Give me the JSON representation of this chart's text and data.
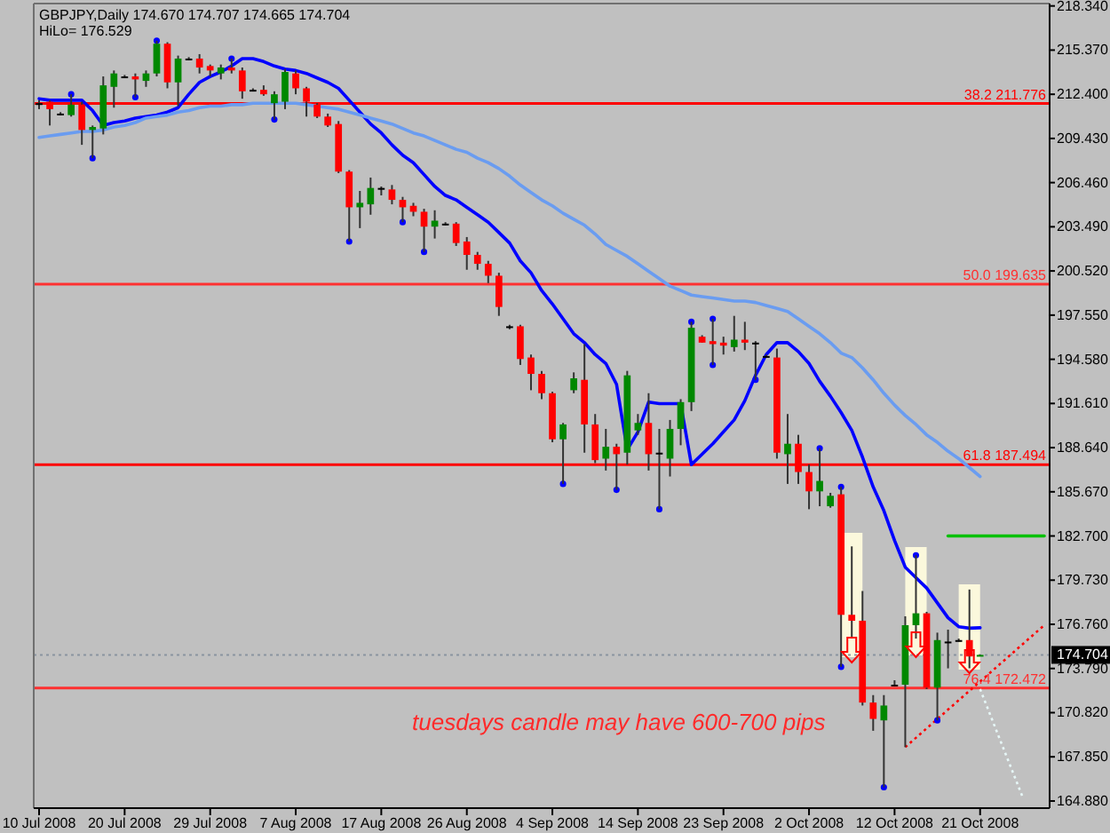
{
  "chart_data": {
    "type": "candlestick",
    "title": "GBPJPY,Daily 174.670 174.707 174.665 174.704",
    "subtitle": "HiLo= 176.529",
    "categories": [
      "10 Jul 2008",
      null,
      null,
      null,
      null,
      null,
      null,
      null,
      "20 Jul 2008",
      null,
      null,
      null,
      null,
      null,
      null,
      null,
      "29 Jul 2008",
      null,
      null,
      null,
      null,
      null,
      null,
      null,
      "7 Aug 2008",
      null,
      null,
      null,
      null,
      null,
      null,
      null,
      "17 Aug 2008",
      null,
      null,
      null,
      null,
      null,
      null,
      null,
      "26 Aug 2008",
      null,
      null,
      null,
      null,
      null,
      null,
      null,
      "4 Sep 2008",
      null,
      null,
      null,
      null,
      null,
      null,
      null,
      "14 Sep 2008",
      null,
      null,
      null,
      null,
      null,
      null,
      null,
      "23 Sep 2008",
      null,
      null,
      null,
      null,
      null,
      null,
      null,
      "2 Oct 2008",
      null,
      null,
      null,
      null,
      null,
      null,
      null,
      "12 Oct 2008",
      null,
      null,
      null,
      null,
      null,
      null,
      null,
      "21 Oct 2008",
      null,
      null,
      null,
      null,
      null,
      null
    ],
    "ohlc": [
      [
        211.8,
        212.0,
        211.4,
        211.8
      ],
      [
        211.9,
        212.0,
        210.3,
        211.4
      ],
      [
        211.1,
        211.2,
        211.0,
        211.1
      ],
      [
        211.0,
        212.4,
        210.9,
        211.7
      ],
      [
        211.7,
        211.9,
        209.0,
        210.0
      ],
      [
        210.0,
        210.3,
        208.1,
        210.2
      ],
      [
        210.1,
        213.6,
        209.7,
        213.0
      ],
      [
        212.9,
        214.0,
        211.5,
        213.8
      ],
      [
        213.6,
        213.7,
        213.5,
        213.6
      ],
      [
        213.6,
        213.8,
        212.2,
        213.4
      ],
      [
        213.3,
        214.0,
        212.9,
        213.8
      ],
      [
        213.8,
        216.0,
        213.6,
        215.8
      ],
      [
        215.8,
        215.9,
        212.8,
        213.2
      ],
      [
        213.2,
        215.0,
        211.6,
        214.8
      ],
      [
        214.8,
        214.9,
        214.7,
        214.8
      ],
      [
        214.8,
        215.1,
        213.8,
        214.2
      ],
      [
        214.3,
        214.4,
        213.6,
        214.0
      ],
      [
        213.8,
        214.4,
        213.4,
        214.2
      ],
      [
        214.2,
        214.8,
        213.8,
        214.0
      ],
      [
        214.0,
        214.2,
        212.1,
        212.6
      ],
      [
        212.7,
        212.8,
        212.6,
        212.7
      ],
      [
        212.7,
        213.0,
        212.3,
        212.4
      ],
      [
        211.8,
        212.6,
        210.7,
        212.4
      ],
      [
        211.9,
        214.1,
        211.4,
        213.9
      ],
      [
        213.8,
        214.0,
        212.4,
        212.8
      ],
      [
        212.8,
        212.9,
        210.9,
        211.9
      ],
      [
        211.7,
        211.8,
        210.8,
        210.9
      ],
      [
        210.9,
        211.1,
        210.2,
        210.3
      ],
      [
        210.4,
        210.6,
        207.1,
        207.2
      ],
      [
        207.2,
        207.3,
        202.5,
        204.8
      ],
      [
        204.8,
        205.9,
        203.4,
        205.1
      ],
      [
        205.0,
        206.8,
        204.3,
        206.1
      ],
      [
        206.1,
        206.2,
        205.6,
        206.1
      ],
      [
        206.0,
        206.3,
        205.0,
        205.3
      ],
      [
        205.3,
        205.5,
        203.8,
        204.8
      ],
      [
        204.9,
        205.1,
        204.2,
        204.5
      ],
      [
        204.5,
        204.7,
        201.8,
        203.5
      ],
      [
        203.5,
        204.6,
        202.7,
        203.9
      ],
      [
        203.7,
        203.8,
        203.6,
        203.7
      ],
      [
        203.7,
        203.8,
        202.2,
        202.4
      ],
      [
        202.5,
        202.8,
        200.6,
        201.6
      ],
      [
        201.6,
        201.8,
        200.6,
        201.0
      ],
      [
        201.0,
        201.2,
        199.7,
        200.2
      ],
      [
        200.2,
        200.4,
        197.5,
        198.1
      ],
      [
        196.8,
        196.9,
        196.6,
        196.8
      ],
      [
        196.8,
        196.9,
        194.2,
        194.6
      ],
      [
        194.7,
        194.9,
        192.5,
        193.6
      ],
      [
        193.6,
        193.8,
        191.9,
        192.3
      ],
      [
        192.3,
        192.4,
        189.0,
        189.2
      ],
      [
        189.2,
        190.3,
        186.2,
        190.2
      ],
      [
        192.5,
        193.7,
        192.3,
        193.3
      ],
      [
        193.2,
        195.6,
        188.3,
        190.2
      ],
      [
        190.2,
        190.9,
        187.6,
        187.8
      ],
      [
        187.9,
        189.9,
        187.1,
        188.7
      ],
      [
        188.7,
        188.9,
        185.8,
        188.2
      ],
      [
        188.3,
        193.8,
        187.5,
        193.5
      ],
      [
        189.8,
        190.9,
        189.5,
        190.3
      ],
      [
        190.3,
        192.3,
        187.1,
        188.2
      ],
      [
        188.3,
        189.9,
        184.5,
        188.3
      ],
      [
        187.9,
        190.5,
        186.7,
        189.9
      ],
      [
        189.9,
        191.9,
        188.8,
        191.7
      ],
      [
        191.7,
        197.1,
        191.1,
        196.7
      ],
      [
        196.1,
        196.2,
        195.7,
        195.7
      ],
      [
        195.8,
        197.3,
        194.2,
        195.6
      ],
      [
        195.7,
        196.1,
        194.9,
        195.5
      ],
      [
        195.4,
        197.5,
        195.1,
        195.9
      ],
      [
        195.9,
        197.1,
        195.2,
        195.7
      ],
      [
        195.7,
        195.8,
        193.2,
        195.7
      ],
      [
        194.8,
        194.9,
        194.7,
        194.8
      ],
      [
        194.7,
        195.3,
        187.9,
        188.3
      ],
      [
        188.2,
        190.9,
        186.2,
        188.9
      ],
      [
        188.9,
        189.5,
        186.2,
        187.0
      ],
      [
        187.0,
        187.5,
        184.5,
        185.7
      ],
      [
        185.7,
        188.6,
        184.7,
        186.4
      ],
      [
        184.7,
        185.6,
        184.6,
        185.4
      ],
      [
        185.5,
        186.0,
        173.9,
        177.4
      ],
      [
        177.4,
        182.0,
        175.9,
        177.0
      ],
      [
        177.0,
        179.0,
        171.3,
        171.5
      ],
      [
        171.5,
        172.0,
        169.6,
        170.4
      ],
      [
        170.3,
        172.0,
        165.8,
        171.3
      ],
      [
        172.7,
        173.0,
        172.6,
        172.7
      ],
      [
        172.7,
        177.3,
        168.5,
        176.7
      ],
      [
        176.7,
        181.4,
        175.8,
        177.5
      ],
      [
        177.5,
        177.6,
        172.4,
        172.5
      ],
      [
        172.5,
        176.2,
        170.3,
        175.7
      ],
      [
        175.6,
        176.4,
        173.8,
        175.6
      ],
      [
        175.7,
        175.8,
        175.6,
        175.7
      ],
      [
        175.7,
        179.1,
        173.8,
        174.6
      ],
      [
        174.67,
        174.707,
        174.665,
        174.704
      ],
      null,
      null,
      null,
      null,
      null,
      null
    ],
    "colors": [
      "#000000",
      "#ff0000",
      "#000000",
      "#008800",
      "#ff0000",
      "#008800",
      "#008800",
      "#008800",
      "#000000",
      "#ff0000",
      "#008800",
      "#008800",
      "#ff0000",
      "#008800",
      "#000000",
      "#ff0000",
      "#ff0000",
      "#008800",
      "#ff0000",
      "#ff0000",
      "#000000",
      "#ff0000",
      "#008800",
      "#008800",
      "#ff0000",
      "#ff0000",
      "#ff0000",
      "#ff0000",
      "#ff0000",
      "#ff0000",
      "#008800",
      "#008800",
      "#000000",
      "#ff0000",
      "#ff0000",
      "#ff0000",
      "#ff0000",
      "#008800",
      "#000000",
      "#ff0000",
      "#ff0000",
      "#ff0000",
      "#ff0000",
      "#ff0000",
      "#000000",
      "#ff0000",
      "#ff0000",
      "#ff0000",
      "#ff0000",
      "#008800",
      "#008800",
      "#ff0000",
      "#ff0000",
      "#008800",
      "#ff0000",
      "#008800",
      "#008800",
      "#ff0000",
      "#000000",
      "#008800",
      "#008800",
      "#008800",
      "#ff0000",
      "#ff0000",
      "#ff0000",
      "#008800",
      "#ff0000",
      "#000000",
      "#000000",
      "#ff0000",
      "#008800",
      "#ff0000",
      "#ff0000",
      "#008800",
      "#008800",
      "#ff0000",
      "#ff0000",
      "#ff0000",
      "#ff0000",
      "#008800",
      "#000000",
      "#008800",
      "#008800",
      "#ff0000",
      "#008800",
      "#000000",
      "#000000",
      "#ff0000",
      "#008800",
      null,
      null,
      null,
      null,
      null,
      null
    ],
    "series": [
      {
        "type": "line",
        "color": "#0000ff",
        "values": [
          212.1,
          212.0,
          212.0,
          212.0,
          212.0,
          211.3,
          210.3,
          210.5,
          210.6,
          210.8,
          210.9,
          211.0,
          211.2,
          211.5,
          212.4,
          213.2,
          213.6,
          213.9,
          214.3,
          214.8,
          214.8,
          214.6,
          214.3,
          214.1,
          214.0,
          213.8,
          213.5,
          213.2,
          212.8,
          212.0,
          211.2,
          210.4,
          209.8,
          209.0,
          208.3,
          207.8,
          207.0,
          206.2,
          205.6,
          205.3,
          204.8,
          204.3,
          203.8,
          203.1,
          202.4,
          201.2,
          200.4,
          199.2,
          198.3,
          197.3,
          196.3,
          195.7,
          194.9,
          194.3,
          192.9,
          188.5,
          189.7,
          191.7,
          191.6,
          191.6,
          191.6,
          187.5,
          188.2,
          188.9,
          189.7,
          190.5,
          191.8,
          193.5,
          194.9,
          195.7,
          195.7,
          195.1,
          194.3,
          193.1,
          192.1,
          191.0,
          189.8,
          188.0,
          186.0,
          184.4,
          182.4,
          180.6,
          179.9,
          179.2,
          178.2,
          177.2,
          176.6,
          176.5,
          176.529,
          null,
          null,
          null,
          null,
          null,
          null
        ]
      },
      {
        "type": "line",
        "color": "#6a9cf0",
        "values": [
          209.5,
          209.6,
          209.7,
          209.8,
          209.9,
          209.9,
          210.0,
          210.2,
          210.3,
          210.5,
          210.8,
          210.9,
          211.0,
          211.2,
          211.3,
          211.5,
          211.6,
          211.6,
          211.7,
          211.7,
          211.8,
          211.8,
          211.8,
          211.8,
          211.8,
          211.7,
          211.6,
          211.5,
          211.4,
          211.2,
          211.0,
          210.8,
          210.6,
          210.4,
          210.1,
          209.8,
          209.6,
          209.3,
          209.0,
          208.7,
          208.5,
          208.1,
          207.8,
          207.4,
          206.9,
          206.3,
          205.8,
          205.3,
          204.9,
          204.4,
          204.0,
          203.6,
          203.0,
          202.3,
          201.9,
          201.5,
          201.0,
          200.5,
          200.0,
          199.5,
          199.2,
          198.9,
          198.8,
          198.7,
          198.6,
          198.5,
          198.5,
          198.4,
          198.2,
          198.0,
          197.8,
          197.3,
          196.8,
          196.3,
          195.7,
          195.0,
          194.7,
          194.0,
          193.2,
          192.3,
          191.5,
          190.8,
          190.2,
          189.5,
          189.0,
          188.4,
          187.9,
          187.3,
          186.7,
          null,
          null,
          null,
          null,
          null,
          null
        ]
      },
      {
        "type": "line",
        "color": "#ff0000",
        "line_style": "dotted",
        "values": [
          null,
          null,
          null,
          null,
          null,
          null,
          null,
          null,
          null,
          null,
          null,
          null,
          null,
          null,
          null,
          null,
          null,
          null,
          null,
          null,
          null,
          null,
          null,
          null,
          null,
          null,
          null,
          null,
          null,
          null,
          null,
          null,
          null,
          null,
          null,
          null,
          null,
          null,
          null,
          null,
          null,
          null,
          null,
          null,
          null,
          null,
          null,
          null,
          null,
          null,
          null,
          null,
          null,
          null,
          null,
          null,
          null,
          null,
          null,
          null,
          null,
          null,
          null,
          null,
          null,
          null,
          null,
          null,
          null,
          null,
          null,
          null,
          null,
          null,
          null,
          null,
          null,
          null,
          null,
          null,
          null,
          168.5,
          null,
          null,
          null,
          null,
          null,
          null,
          null,
          null,
          null,
          null,
          null,
          null,
          176.7
        ]
      },
      {
        "type": "line",
        "color": "#00c000",
        "values": [
          null,
          null,
          null,
          null,
          null,
          null,
          null,
          null,
          null,
          null,
          null,
          null,
          null,
          null,
          null,
          null,
          null,
          null,
          null,
          null,
          null,
          null,
          null,
          null,
          null,
          null,
          null,
          null,
          null,
          null,
          null,
          null,
          null,
          null,
          null,
          null,
          null,
          null,
          null,
          null,
          null,
          null,
          null,
          null,
          null,
          null,
          null,
          null,
          null,
          null,
          null,
          null,
          null,
          null,
          null,
          null,
          null,
          null,
          null,
          null,
          null,
          null,
          null,
          null,
          null,
          null,
          null,
          null,
          null,
          null,
          null,
          null,
          null,
          null,
          null,
          null,
          null,
          null,
          null,
          null,
          null,
          null,
          null,
          null,
          null,
          182.7,
          null,
          null,
          null,
          null,
          null,
          null,
          null,
          null,
          182.7
        ]
      },
      {
        "type": "line",
        "color": "#e6f6f6",
        "line_style": "dotted",
        "values": [
          null,
          null,
          null,
          null,
          null,
          null,
          null,
          null,
          null,
          null,
          null,
          null,
          null,
          null,
          null,
          null,
          null,
          null,
          null,
          null,
          null,
          null,
          null,
          null,
          null,
          null,
          null,
          null,
          null,
          null,
          null,
          null,
          null,
          null,
          null,
          null,
          null,
          null,
          null,
          null,
          null,
          null,
          null,
          null,
          null,
          null,
          null,
          null,
          null,
          null,
          null,
          null,
          null,
          null,
          null,
          null,
          null,
          null,
          null,
          null,
          null,
          null,
          null,
          null,
          null,
          null,
          null,
          null,
          null,
          null,
          null,
          null,
          null,
          null,
          null,
          null,
          null,
          null,
          null,
          null,
          null,
          null,
          null,
          null,
          null,
          null,
          null,
          null,
          172.4,
          null,
          null,
          null,
          165.1,
          null,
          null
        ]
      },
      {
        "type": "scatter",
        "color": "#0000ff",
        "marker": "circle",
        "values": [
          null,
          null,
          null,
          212.4,
          null,
          null,
          null,
          null,
          null,
          null,
          null,
          216.0,
          null,
          null,
          null,
          null,
          null,
          null,
          214.8,
          null,
          null,
          null,
          null,
          null,
          null,
          null,
          null,
          null,
          null,
          null,
          null,
          null,
          null,
          null,
          null,
          null,
          null,
          null,
          null,
          null,
          null,
          null,
          null,
          null,
          null,
          null,
          null,
          null,
          null,
          null,
          null,
          null,
          null,
          null,
          null,
          null,
          null,
          null,
          null,
          null,
          null,
          197.1,
          null,
          197.3,
          null,
          null,
          null,
          null,
          null,
          null,
          null,
          null,
          null,
          188.6,
          null,
          186.0,
          null,
          null,
          null,
          null,
          null,
          null,
          181.4,
          null,
          null,
          null,
          null,
          null,
          null,
          null,
          null,
          null,
          null,
          null,
          null
        ]
      },
      {
        "type": "scatter",
        "color": "#0000ff",
        "marker": "circle",
        "values": [
          null,
          null,
          null,
          null,
          null,
          208.1,
          null,
          null,
          null,
          212.2,
          null,
          null,
          null,
          null,
          null,
          null,
          null,
          null,
          null,
          null,
          null,
          null,
          210.7,
          null,
          null,
          null,
          null,
          null,
          null,
          202.5,
          null,
          null,
          null,
          null,
          203.8,
          null,
          201.8,
          null,
          null,
          null,
          null,
          null,
          null,
          null,
          null,
          null,
          null,
          null,
          null,
          186.2,
          null,
          null,
          null,
          null,
          185.8,
          null,
          null,
          null,
          184.5,
          null,
          null,
          null,
          null,
          194.2,
          null,
          null,
          null,
          193.2,
          null,
          null,
          null,
          null,
          null,
          null,
          null,
          173.9,
          null,
          null,
          null,
          165.8,
          null,
          null,
          null,
          null,
          170.3,
          null,
          null,
          null,
          null,
          null,
          null,
          null,
          null,
          null,
          null
        ]
      }
    ],
    "ylim": [
      164.4,
      218.5
    ],
    "yticks": [
      {
        "value": 218.34,
        "label": "218.340"
      },
      {
        "value": 215.37,
        "label": "215.370"
      },
      {
        "value": 212.4,
        "label": "212.400"
      },
      {
        "value": 209.43,
        "label": "209.430"
      },
      {
        "value": 206.46,
        "label": "206.460"
      },
      {
        "value": 203.49,
        "label": "203.490"
      },
      {
        "value": 200.52,
        "label": "200.520"
      },
      {
        "value": 197.55,
        "label": "197.550"
      },
      {
        "value": 194.58,
        "label": "194.580"
      },
      {
        "value": 191.61,
        "label": "191.610"
      },
      {
        "value": 188.64,
        "label": "188.640"
      },
      {
        "value": 185.67,
        "label": "185.670"
      },
      {
        "value": 182.7,
        "label": "182.700"
      },
      {
        "value": 179.73,
        "label": "179.730"
      },
      {
        "value": 176.76,
        "label": "176.760"
      },
      {
        "value": 173.79,
        "label": "173.790"
      },
      {
        "value": 170.82,
        "label": "170.820"
      },
      {
        "value": 167.85,
        "label": "167.850"
      },
      {
        "value": 164.88,
        "label": "164.880"
      }
    ],
    "ref_lines": [
      {
        "axis": "y",
        "value": 211.776,
        "label": "38.2 211.776",
        "color": "#ff0000"
      },
      {
        "axis": "y",
        "value": 199.635,
        "label": "50.0 199.635",
        "color": "#ff3030"
      },
      {
        "axis": "y",
        "value": 187.494,
        "label": "61.8 187.494",
        "color": "#ff0000"
      },
      {
        "axis": "y",
        "value": 172.472,
        "label": "76.4 172.472",
        "color": "#ff3030"
      },
      {
        "axis": "y",
        "value": 174.704,
        "label": "174.704",
        "color": "#8a94a0",
        "line_style": "dotted"
      }
    ],
    "annotations": [
      "tuesdays candle may have 600-700 pips"
    ]
  }
}
